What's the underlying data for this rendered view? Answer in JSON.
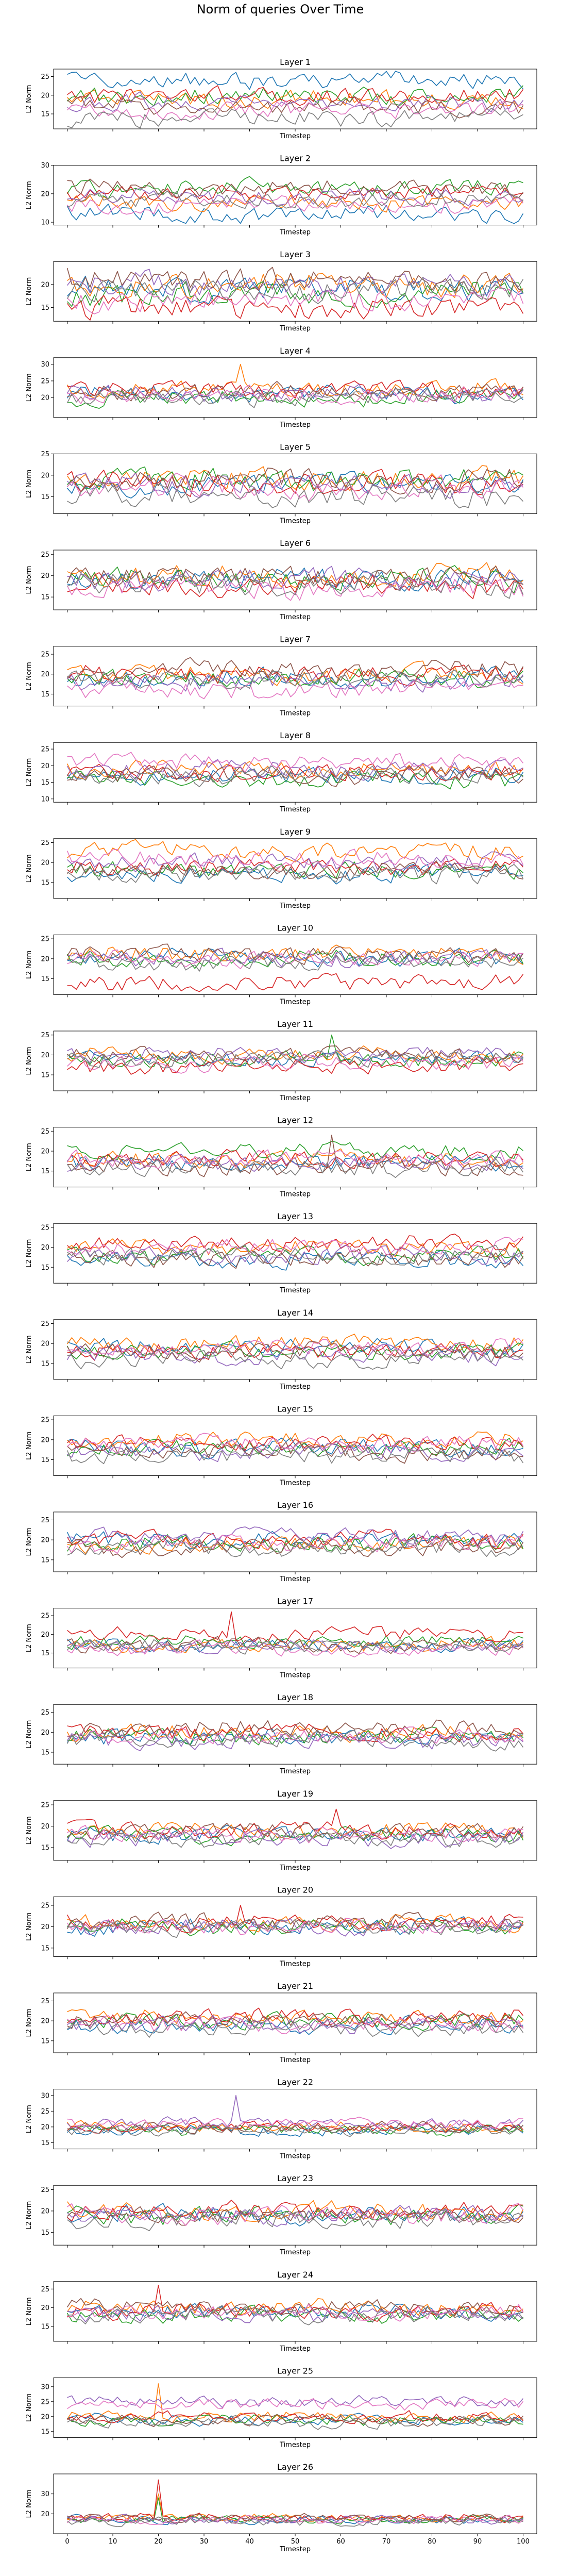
{
  "figure": {
    "title": "Norm of queries Over Time"
  },
  "series_colors": [
    "#1f77b4",
    "#ff7f0e",
    "#2ca02c",
    "#d62728",
    "#9467bd",
    "#8c564b",
    "#e377c2",
    "#7f7f7f"
  ],
  "chart_data": [
    {
      "type": "line",
      "title": "Layer 1",
      "xlabel": "Timestep",
      "ylabel": "L2 Norm",
      "xlim": [
        -3,
        103
      ],
      "ylim": [
        11,
        27
      ],
      "yticks": [
        15,
        20,
        25
      ],
      "xticks": [],
      "grid": false,
      "base": [
        24,
        19,
        20,
        20,
        18,
        17,
        16,
        14
      ],
      "amp": 2.0,
      "spikes": []
    },
    {
      "type": "line",
      "title": "Layer 2",
      "xlabel": "Timestep",
      "ylabel": "L2 Norm",
      "xlim": [
        -3,
        103
      ],
      "ylim": [
        9,
        30
      ],
      "yticks": [
        10,
        20,
        30
      ],
      "xticks": [],
      "grid": false,
      "base": [
        13,
        17,
        22,
        20,
        19,
        22,
        16,
        18
      ],
      "amp": 2.5,
      "spikes": []
    },
    {
      "type": "line",
      "title": "Layer 3",
      "xlabel": "Timestep",
      "ylabel": "L2 Norm",
      "xlim": [
        -3,
        103
      ],
      "ylim": [
        12,
        25
      ],
      "yticks": [
        15,
        20
      ],
      "xticks": [],
      "grid": false,
      "base": [
        19,
        20,
        18,
        15,
        20,
        21,
        17,
        19
      ],
      "amp": 2.2,
      "spikes": []
    },
    {
      "type": "line",
      "title": "Layer 4",
      "xlabel": "Timestep",
      "ylabel": "L2 Norm",
      "xlim": [
        -3,
        103
      ],
      "ylim": [
        14,
        32
      ],
      "yticks": [
        20,
        25,
        30
      ],
      "xticks": [],
      "grid": false,
      "base": [
        21,
        23,
        20,
        22,
        21,
        22,
        21,
        20
      ],
      "amp": 2.2,
      "spikes": [
        {
          "series": 1,
          "x": 38,
          "y": 30
        }
      ]
    },
    {
      "type": "line",
      "title": "Layer 5",
      "xlabel": "Timestep",
      "ylabel": "L2 Norm",
      "xlim": [
        -3,
        103
      ],
      "ylim": [
        11,
        25
      ],
      "yticks": [
        15,
        20,
        25
      ],
      "xticks": [],
      "grid": false,
      "base": [
        18,
        19,
        19,
        18,
        18,
        19,
        17,
        15
      ],
      "amp": 2.2,
      "spikes": []
    },
    {
      "type": "line",
      "title": "Layer 6",
      "xlabel": "Timestep",
      "ylabel": "L2 Norm",
      "xlim": [
        -3,
        103
      ],
      "ylim": [
        12,
        26
      ],
      "yticks": [
        15,
        20,
        25
      ],
      "xticks": [],
      "grid": false,
      "base": [
        19,
        20,
        19,
        18,
        19,
        20,
        17,
        18
      ],
      "amp": 2.2,
      "spikes": []
    },
    {
      "type": "line",
      "title": "Layer 7",
      "xlabel": "Timestep",
      "ylabel": "L2 Norm",
      "xlim": [
        -3,
        103
      ],
      "ylim": [
        12,
        27
      ],
      "yticks": [
        15,
        20,
        25
      ],
      "xticks": [],
      "grid": false,
      "base": [
        19,
        20,
        19,
        20,
        18,
        21,
        16,
        19
      ],
      "amp": 2.0,
      "spikes": []
    },
    {
      "type": "line",
      "title": "Layer 8",
      "xlabel": "Timestep",
      "ylabel": "L2 Norm",
      "xlim": [
        -3,
        103
      ],
      "ylim": [
        9,
        27
      ],
      "yticks": [
        10,
        15,
        20,
        25
      ],
      "xticks": [],
      "grid": false,
      "base": [
        17,
        19,
        16,
        18,
        19,
        17,
        21,
        17
      ],
      "amp": 2.2,
      "spikes": []
    },
    {
      "type": "line",
      "title": "Layer 9",
      "xlabel": "Timestep",
      "ylabel": "L2 Norm",
      "xlim": [
        -3,
        103
      ],
      "ylim": [
        11,
        26
      ],
      "yticks": [
        15,
        20,
        25
      ],
      "xticks": [],
      "grid": false,
      "base": [
        17,
        23,
        18,
        19,
        20,
        18,
        21,
        17
      ],
      "amp": 1.8,
      "spikes": []
    },
    {
      "type": "line",
      "title": "Layer 10",
      "xlabel": "Timestep",
      "ylabel": "L2 Norm",
      "xlim": [
        -3,
        103
      ],
      "ylim": [
        11,
        26
      ],
      "yticks": [
        15,
        20,
        25
      ],
      "xticks": [],
      "grid": false,
      "base": [
        20,
        21,
        20,
        14,
        20,
        21,
        20,
        19
      ],
      "amp": 1.8,
      "spikes": []
    },
    {
      "type": "line",
      "title": "Layer 11",
      "xlabel": "Timestep",
      "ylabel": "L2 Norm",
      "xlim": [
        -3,
        103
      ],
      "ylim": [
        11,
        26
      ],
      "yticks": [
        15,
        20,
        25
      ],
      "xticks": [],
      "grid": false,
      "base": [
        19,
        20,
        19,
        17,
        20,
        20,
        18,
        19
      ],
      "amp": 1.6,
      "spikes": [
        {
          "series": 2,
          "x": 58,
          "y": 25
        }
      ]
    },
    {
      "type": "line",
      "title": "Layer 12",
      "xlabel": "Timestep",
      "ylabel": "L2 Norm",
      "xlim": [
        -3,
        103
      ],
      "ylim": [
        11,
        26
      ],
      "yticks": [
        15,
        20,
        25
      ],
      "xticks": [],
      "grid": false,
      "base": [
        17,
        18,
        20,
        18,
        17,
        16,
        18,
        16
      ],
      "amp": 1.8,
      "spikes": [
        {
          "series": 5,
          "x": 58,
          "y": 24
        }
      ]
    },
    {
      "type": "line",
      "title": "Layer 13",
      "xlabel": "Timestep",
      "ylabel": "L2 Norm",
      "xlim": [
        -3,
        103
      ],
      "ylim": [
        11,
        26
      ],
      "yticks": [
        15,
        20,
        25
      ],
      "xticks": [],
      "grid": false,
      "base": [
        17,
        20,
        18,
        21,
        18,
        17,
        20,
        18
      ],
      "amp": 1.8,
      "spikes": []
    },
    {
      "type": "line",
      "title": "Layer 14",
      "xlabel": "Timestep",
      "ylabel": "L2 Norm",
      "xlim": [
        -3,
        103
      ],
      "ylim": [
        11,
        26
      ],
      "yticks": [
        15,
        20,
        25
      ],
      "xticks": [],
      "grid": false,
      "base": [
        19,
        20,
        18,
        18,
        17,
        18,
        19,
        16
      ],
      "amp": 1.8,
      "spikes": []
    },
    {
      "type": "line",
      "title": "Layer 15",
      "xlabel": "Timestep",
      "ylabel": "L2 Norm",
      "xlim": [
        -3,
        103
      ],
      "ylim": [
        11,
        26
      ],
      "yticks": [
        15,
        20,
        25
      ],
      "xticks": [],
      "grid": false,
      "base": [
        18,
        20,
        18,
        19,
        17,
        17,
        19,
        16
      ],
      "amp": 1.8,
      "spikes": []
    },
    {
      "type": "line",
      "title": "Layer 16",
      "xlabel": "Timestep",
      "ylabel": "L2 Norm",
      "xlim": [
        -3,
        103
      ],
      "ylim": [
        12,
        27
      ],
      "yticks": [
        15,
        20,
        25
      ],
      "xticks": [],
      "grid": false,
      "base": [
        20,
        19,
        19,
        20,
        21,
        18,
        19,
        18
      ],
      "amp": 1.8,
      "spikes": []
    },
    {
      "type": "line",
      "title": "Layer 17",
      "xlabel": "Timestep",
      "ylabel": "L2 Norm",
      "xlim": [
        -3,
        103
      ],
      "ylim": [
        11,
        27
      ],
      "yticks": [
        15,
        20,
        25
      ],
      "xticks": [],
      "grid": false,
      "base": [
        17,
        17,
        18,
        20,
        17,
        17,
        16,
        17
      ],
      "amp": 1.6,
      "spikes": [
        {
          "series": 3,
          "x": 36,
          "y": 26
        }
      ]
    },
    {
      "type": "line",
      "title": "Layer 18",
      "xlabel": "Timestep",
      "ylabel": "L2 Norm",
      "xlim": [
        -3,
        103
      ],
      "ylim": [
        12,
        27
      ],
      "yticks": [
        15,
        20,
        25
      ],
      "xticks": [],
      "grid": false,
      "base": [
        19,
        20,
        19,
        20,
        18,
        21,
        19,
        18
      ],
      "amp": 1.8,
      "spikes": []
    },
    {
      "type": "line",
      "title": "Layer 19",
      "xlabel": "Timestep",
      "ylabel": "L2 Norm",
      "xlim": [
        -3,
        103
      ],
      "ylim": [
        12,
        26
      ],
      "yticks": [
        15,
        20,
        25
      ],
      "xticks": [],
      "grid": false,
      "base": [
        18,
        19,
        18,
        19,
        17,
        19,
        18,
        17
      ],
      "amp": 1.6,
      "spikes": [
        {
          "series": 3,
          "x": 59,
          "y": 24
        }
      ]
    },
    {
      "type": "line",
      "title": "Layer 20",
      "xlabel": "Timestep",
      "ylabel": "L2 Norm",
      "xlim": [
        -3,
        103
      ],
      "ylim": [
        13,
        27
      ],
      "yticks": [
        15,
        20,
        25
      ],
      "xticks": [],
      "grid": false,
      "base": [
        20,
        21,
        20,
        21,
        20,
        21,
        20,
        20
      ],
      "amp": 1.6,
      "spikes": [
        {
          "series": 3,
          "x": 38,
          "y": 25
        }
      ]
    },
    {
      "type": "line",
      "title": "Layer 21",
      "xlabel": "Timestep",
      "ylabel": "L2 Norm",
      "xlim": [
        -3,
        103
      ],
      "ylim": [
        12,
        27
      ],
      "yticks": [
        15,
        20,
        25
      ],
      "xticks": [],
      "grid": false,
      "base": [
        19,
        21,
        20,
        21,
        19,
        20,
        19,
        18
      ],
      "amp": 1.8,
      "spikes": []
    },
    {
      "type": "line",
      "title": "Layer 22",
      "xlabel": "Timestep",
      "ylabel": "L2 Norm",
      "xlim": [
        -3,
        103
      ],
      "ylim": [
        13,
        32
      ],
      "yticks": [
        15,
        20,
        25,
        30
      ],
      "xticks": [],
      "grid": false,
      "base": [
        19,
        20,
        19,
        20,
        21,
        20,
        21,
        19
      ],
      "amp": 1.5,
      "spikes": [
        {
          "series": 4,
          "x": 37,
          "y": 30
        }
      ]
    },
    {
      "type": "line",
      "title": "Layer 23",
      "xlabel": "Timestep",
      "ylabel": "L2 Norm",
      "xlim": [
        -3,
        103
      ],
      "ylim": [
        12,
        26
      ],
      "yticks": [
        15,
        20,
        25
      ],
      "xticks": [],
      "grid": false,
      "base": [
        19,
        20,
        19,
        20,
        19,
        19,
        19,
        18
      ],
      "amp": 1.8,
      "spikes": []
    },
    {
      "type": "line",
      "title": "Layer 24",
      "xlabel": "Timestep",
      "ylabel": "L2 Norm",
      "xlim": [
        -3,
        103
      ],
      "ylim": [
        11,
        27
      ],
      "yticks": [
        15,
        20,
        25
      ],
      "xticks": [],
      "grid": false,
      "base": [
        19,
        20,
        18,
        19,
        18,
        20,
        19,
        18
      ],
      "amp": 1.8,
      "spikes": [
        {
          "series": 3,
          "x": 20,
          "y": 26
        }
      ]
    },
    {
      "type": "line",
      "title": "Layer 25",
      "xlabel": "Timestep",
      "ylabel": "L2 Norm",
      "xlim": [
        -3,
        103
      ],
      "ylim": [
        13,
        33
      ],
      "yticks": [
        15,
        20,
        25,
        30
      ],
      "xticks": [],
      "grid": false,
      "base": [
        19,
        20,
        19,
        20,
        25,
        19,
        24,
        18
      ],
      "amp": 1.6,
      "spikes": [
        {
          "series": 1,
          "x": 20,
          "y": 31
        }
      ]
    },
    {
      "type": "line",
      "title": "Layer 26",
      "xlabel": "Timestep",
      "ylabel": "L2 Norm",
      "xlim": [
        -3,
        103
      ],
      "ylim": [
        10,
        40
      ],
      "yticks": [
        20,
        30
      ],
      "xticks": [
        0,
        10,
        20,
        30,
        40,
        50,
        60,
        70,
        80,
        90,
        100
      ],
      "grid": false,
      "base": [
        17,
        18,
        17,
        18,
        17,
        18,
        17,
        16
      ],
      "amp": 1.8,
      "spikes": [
        {
          "series": 3,
          "x": 20,
          "y": 37
        },
        {
          "series": 1,
          "x": 20,
          "y": 30
        },
        {
          "series": 2,
          "x": 20,
          "y": 28
        }
      ]
    }
  ]
}
